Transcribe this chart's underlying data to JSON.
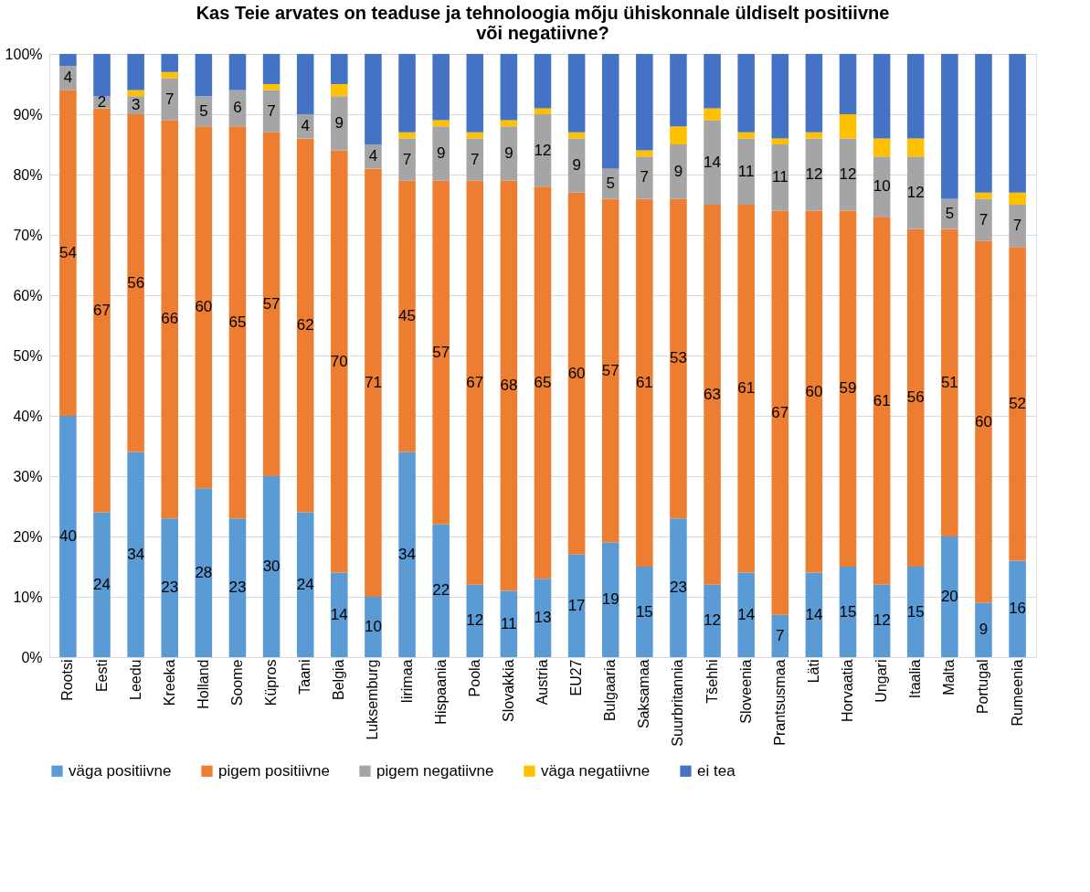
{
  "chart_data": {
    "type": "bar",
    "stacked": true,
    "title": [
      "Kas Teie arvates on teaduse ja tehnoloogia mõju ühiskonnale üldiselt positiivne",
      "või negatiivne?"
    ],
    "categories": [
      "Rootsi",
      "Eesti",
      "Leedu",
      "Kreeka",
      "Holland",
      "Soome",
      "Küpros",
      "Taani",
      "Belgia",
      "Luksemburg",
      "Iirimaa",
      "Hispaania",
      "Poola",
      "Slovakkia",
      "Austria",
      "EU27",
      "Bulgaaria",
      "Saksamaa",
      "Suurbritannia",
      "Tšehhi",
      "Sloveenia",
      "Prantsusmaa",
      "Läti",
      "Horvaatia",
      "Ungari",
      "Itaalia",
      "Malta",
      "Portugal",
      "Rumeenia"
    ],
    "series": [
      {
        "name": "väga positiivne",
        "color": "#5b9bd5",
        "values": [
          40,
          24,
          34,
          23,
          28,
          23,
          30,
          24,
          14,
          10,
          34,
          22,
          12,
          11,
          13,
          17,
          19,
          15,
          23,
          12,
          14,
          7,
          14,
          15,
          12,
          15,
          20,
          9,
          16
        ],
        "value_labels": [
          "40",
          "24",
          "34",
          "23",
          "28",
          "23",
          "30",
          "24",
          "14",
          "10",
          "34",
          "22",
          "12",
          "11",
          "13",
          "17",
          "19",
          "15",
          "23",
          "12",
          "14",
          "7",
          "14",
          "15",
          "12",
          "15",
          "20",
          "9",
          "16"
        ]
      },
      {
        "name": "pigem positiivne",
        "color": "#ed7d31",
        "values": [
          54,
          67,
          56,
          66,
          60,
          65,
          57,
          62,
          70,
          71,
          45,
          57,
          67,
          68,
          65,
          60,
          57,
          61,
          53,
          63,
          61,
          67,
          60,
          59,
          61,
          56,
          51,
          60,
          52
        ],
        "value_labels": [
          "54",
          "67",
          "56",
          "66",
          "60",
          "65",
          "57",
          "62",
          "70",
          "71",
          "45",
          "57",
          "67",
          "68",
          "65",
          "60",
          "57",
          "61",
          "53",
          "63",
          "61",
          "67",
          "60",
          "59",
          "61",
          "56",
          "51",
          "60",
          "52"
        ]
      },
      {
        "name": "pigem negatiivne",
        "color": "#a5a5a5",
        "values": [
          4,
          2,
          3,
          7,
          5,
          6,
          7,
          4,
          9,
          4,
          7,
          9,
          7,
          9,
          12,
          9,
          5,
          7,
          9,
          14,
          11,
          11,
          12,
          12,
          10,
          12,
          5,
          7,
          7
        ],
        "value_labels": [
          "4",
          "2",
          "3",
          "7",
          "5",
          "6",
          "7",
          "4",
          "9",
          "4",
          "7",
          "9",
          "7",
          "9",
          "12",
          "9",
          "5",
          "7",
          "9",
          "14",
          "11",
          "11",
          "12",
          "12",
          "10",
          "12",
          "5",
          "7",
          "7"
        ]
      },
      {
        "name": "väga negatiivne",
        "color": "#ffc000",
        "values": [
          0,
          0,
          1,
          1,
          0,
          0,
          1,
          0,
          2,
          0,
          1,
          1,
          1,
          1,
          1,
          1,
          0,
          1,
          3,
          2,
          1,
          1,
          1,
          4,
          3,
          3,
          0,
          1,
          2
        ]
      },
      {
        "name": "ei tea",
        "color": "#4472c4",
        "values": [
          2,
          7,
          6,
          3,
          7,
          6,
          5,
          10,
          5,
          15,
          13,
          11,
          13,
          11,
          9,
          13,
          19,
          16,
          12,
          9,
          13,
          14,
          13,
          10,
          14,
          14,
          24,
          23,
          23
        ]
      }
    ],
    "ylim": [
      0,
      100
    ],
    "yticks": [
      {
        "value": 0,
        "label": "0%"
      },
      {
        "value": 10,
        "label": "10%"
      },
      {
        "value": 20,
        "label": "20%"
      },
      {
        "value": 30,
        "label": "30%"
      },
      {
        "value": 40,
        "label": "40%"
      },
      {
        "value": 50,
        "label": "50%"
      },
      {
        "value": 60,
        "label": "60%"
      },
      {
        "value": 70,
        "label": "70%"
      },
      {
        "value": 80,
        "label": "80%"
      },
      {
        "value": 90,
        "label": "90%"
      },
      {
        "value": 100,
        "label": "100%"
      }
    ],
    "grid": "y",
    "legend": "bottom"
  }
}
